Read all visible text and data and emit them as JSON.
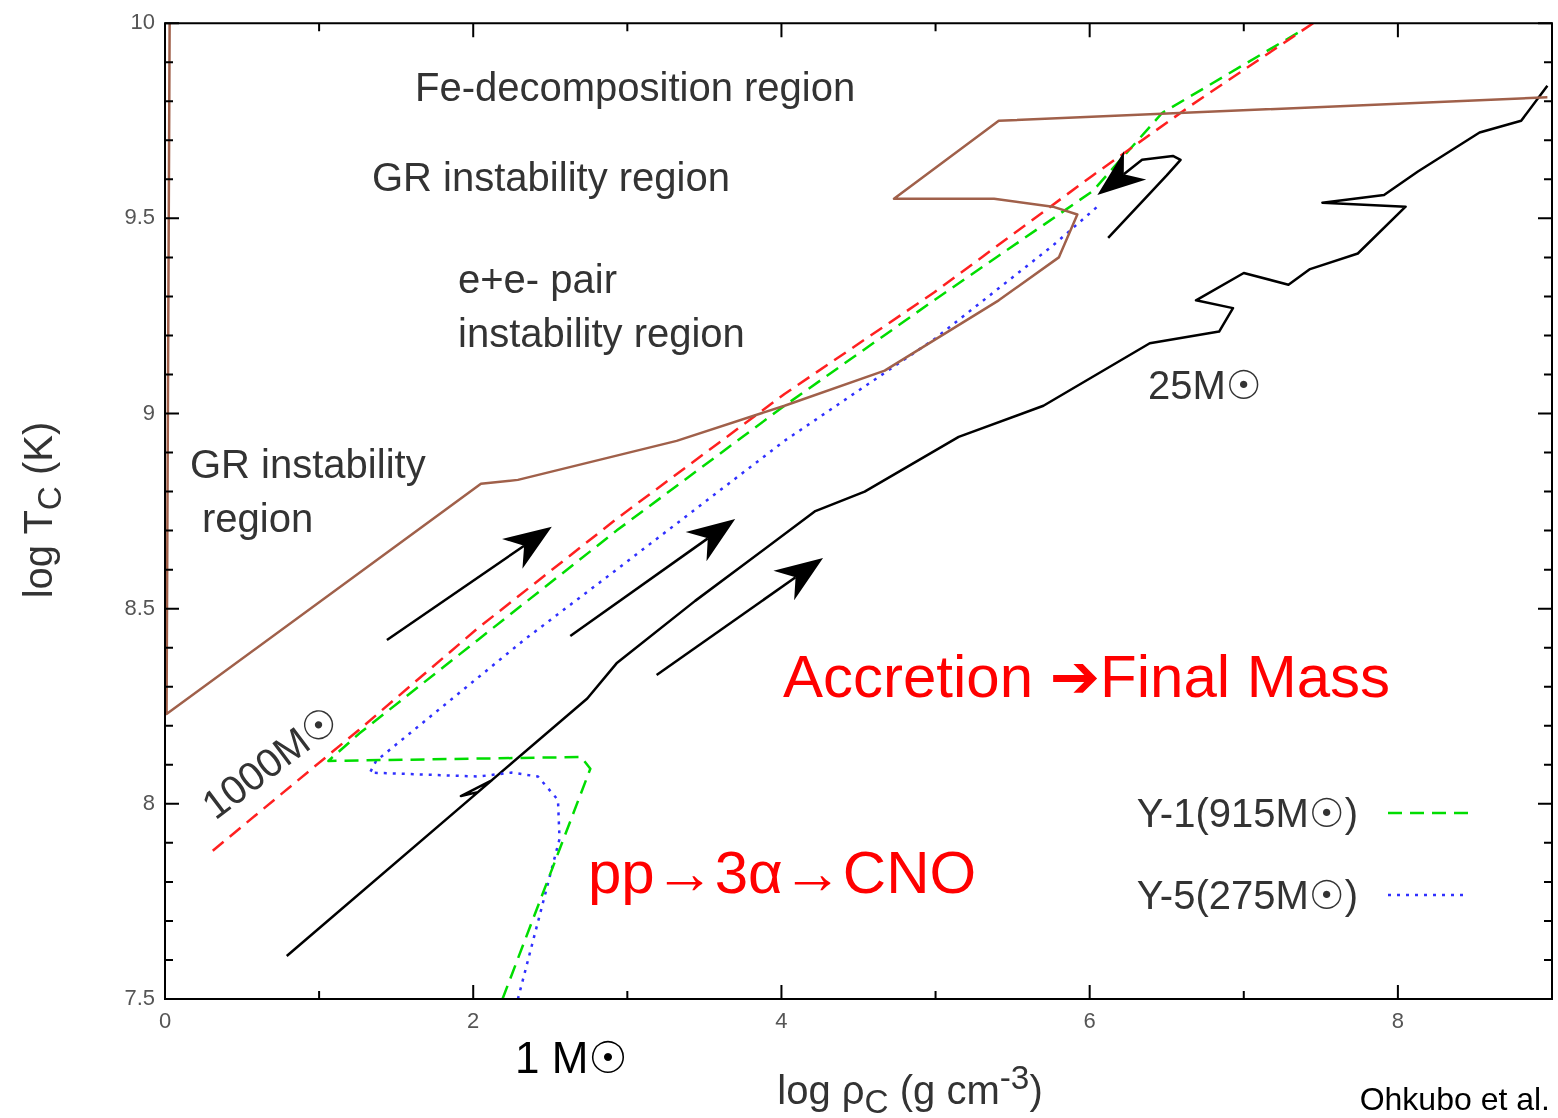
{
  "chart_data": {
    "type": "line",
    "xlabel": "log ρ$_{C}$  (g cm$^{-3}$)",
    "ylabel": "log T$_{C}$  (K)",
    "xlim": [
      0,
      9
    ],
    "ylim": [
      7.5,
      10
    ],
    "xticks": [
      0,
      {
        "value": 1,
        "label": null
      },
      2,
      {
        "value": 3,
        "label": null
      },
      4,
      {
        "value": 5,
        "label": null
      },
      6,
      {
        "value": 7,
        "label": null
      },
      8
    ],
    "yticks": [
      7.5,
      {
        "value": 7.6,
        "label": null
      },
      {
        "value": 7.7,
        "label": null
      },
      {
        "value": 7.8,
        "label": null
      },
      {
        "value": 7.9,
        "label": null
      },
      8,
      {
        "value": 8.1,
        "label": null
      },
      {
        "value": 8.2,
        "label": null
      },
      {
        "value": 8.3,
        "label": null
      },
      {
        "value": 8.4,
        "label": null
      },
      8.5,
      {
        "value": 8.6,
        "label": null
      },
      {
        "value": 8.7,
        "label": null
      },
      {
        "value": 8.8,
        "label": null
      },
      {
        "value": 8.9,
        "label": null
      },
      9,
      {
        "value": 9.1,
        "label": null
      },
      {
        "value": 9.2,
        "label": null
      },
      {
        "value": 9.3,
        "label": null
      },
      {
        "value": 9.4,
        "label": null
      },
      9.5,
      {
        "value": 9.6,
        "label": null
      },
      {
        "value": 9.7,
        "label": null
      },
      {
        "value": 9.8,
        "label": null
      },
      {
        "value": 9.9,
        "label": null
      },
      10
    ],
    "legend": "bottom right",
    "line_style": "solid",
    "series": [
      {
        "color": "#a0604a",
        "x": [
          0.03,
          0.01,
          2.05,
          2.29,
          3.32,
          4.02,
          4.67,
          5.41,
          5.8,
          5.92,
          5.76,
          5.38,
          4.73,
          5.41,
          8.97
        ],
        "values": [
          10.0,
          8.23,
          8.82,
          8.83,
          8.93,
          9.02,
          9.11,
          9.29,
          9.4,
          9.51,
          9.53,
          9.55,
          9.55,
          9.75,
          9.81
        ]
      },
      {
        "color": "#ff2020",
        "line_style": "dashed",
        "x": [
          0.31,
          1.26,
          2.03,
          2.93,
          4.02,
          4.99,
          6.02,
          6.66,
          7.45
        ],
        "values": [
          7.88,
          8.19,
          8.45,
          8.73,
          9.05,
          9.31,
          9.61,
          9.79,
          10.0
        ]
      },
      {
        "name": "Y-1(915M☉)",
        "color": "#00dd00",
        "line_style": "dashed",
        "x": [
          2.19,
          2.76,
          2.7,
          1.06,
          1.26,
          2.03,
          2.93,
          4.02,
          4.99,
          6.02,
          6.47,
          7.37
        ],
        "values": [
          7.5,
          8.09,
          8.12,
          8.11,
          8.18,
          8.42,
          8.7,
          9.02,
          9.29,
          9.57,
          9.77,
          9.98
        ]
      },
      {
        "name": "Y-5(275M☉)",
        "color": "#3030ff",
        "line_style": "dotted",
        "x": [
          2.29,
          2.56,
          2.55,
          2.42,
          2.25,
          2.03,
          1.33,
          1.37,
          2.33,
          2.93,
          4.02,
          4.99,
          5.76,
          6.05
        ],
        "values": [
          7.5,
          7.91,
          8.01,
          8.07,
          8.08,
          8.07,
          8.08,
          8.11,
          8.42,
          8.6,
          8.93,
          9.19,
          9.43,
          9.53
        ]
      },
      {
        "color": "#000000",
        "x": [
          0.79,
          2.12,
          1.92,
          2.03,
          2.74,
          2.93,
          3.44,
          4.22,
          4.54,
          5.15,
          5.7,
          6.39,
          6.84,
          6.93,
          6.69,
          7.0,
          7.29,
          7.43,
          7.74,
          8.05,
          7.51,
          7.91,
          8.13,
          8.53,
          8.8,
          8.97
        ],
        "values": [
          7.61,
          8.06,
          8.02,
          8.03,
          8.27,
          8.36,
          8.52,
          8.75,
          8.8,
          8.94,
          9.02,
          9.18,
          9.21,
          9.27,
          9.29,
          9.36,
          9.33,
          9.37,
          9.41,
          9.53,
          9.54,
          9.56,
          9.62,
          9.72,
          9.75,
          9.84
        ]
      }
    ],
    "annotations": [
      "Fe-decomposition region",
      "GR instability region",
      "e+e- pair\ninstability region",
      "GR instability\nregion",
      "Accretion ➔Final Mass",
      "pp→3α→CNO",
      "1 M☉",
      "Ohkubo et al.",
      "25M☉",
      "1000M☉"
    ]
  }
}
